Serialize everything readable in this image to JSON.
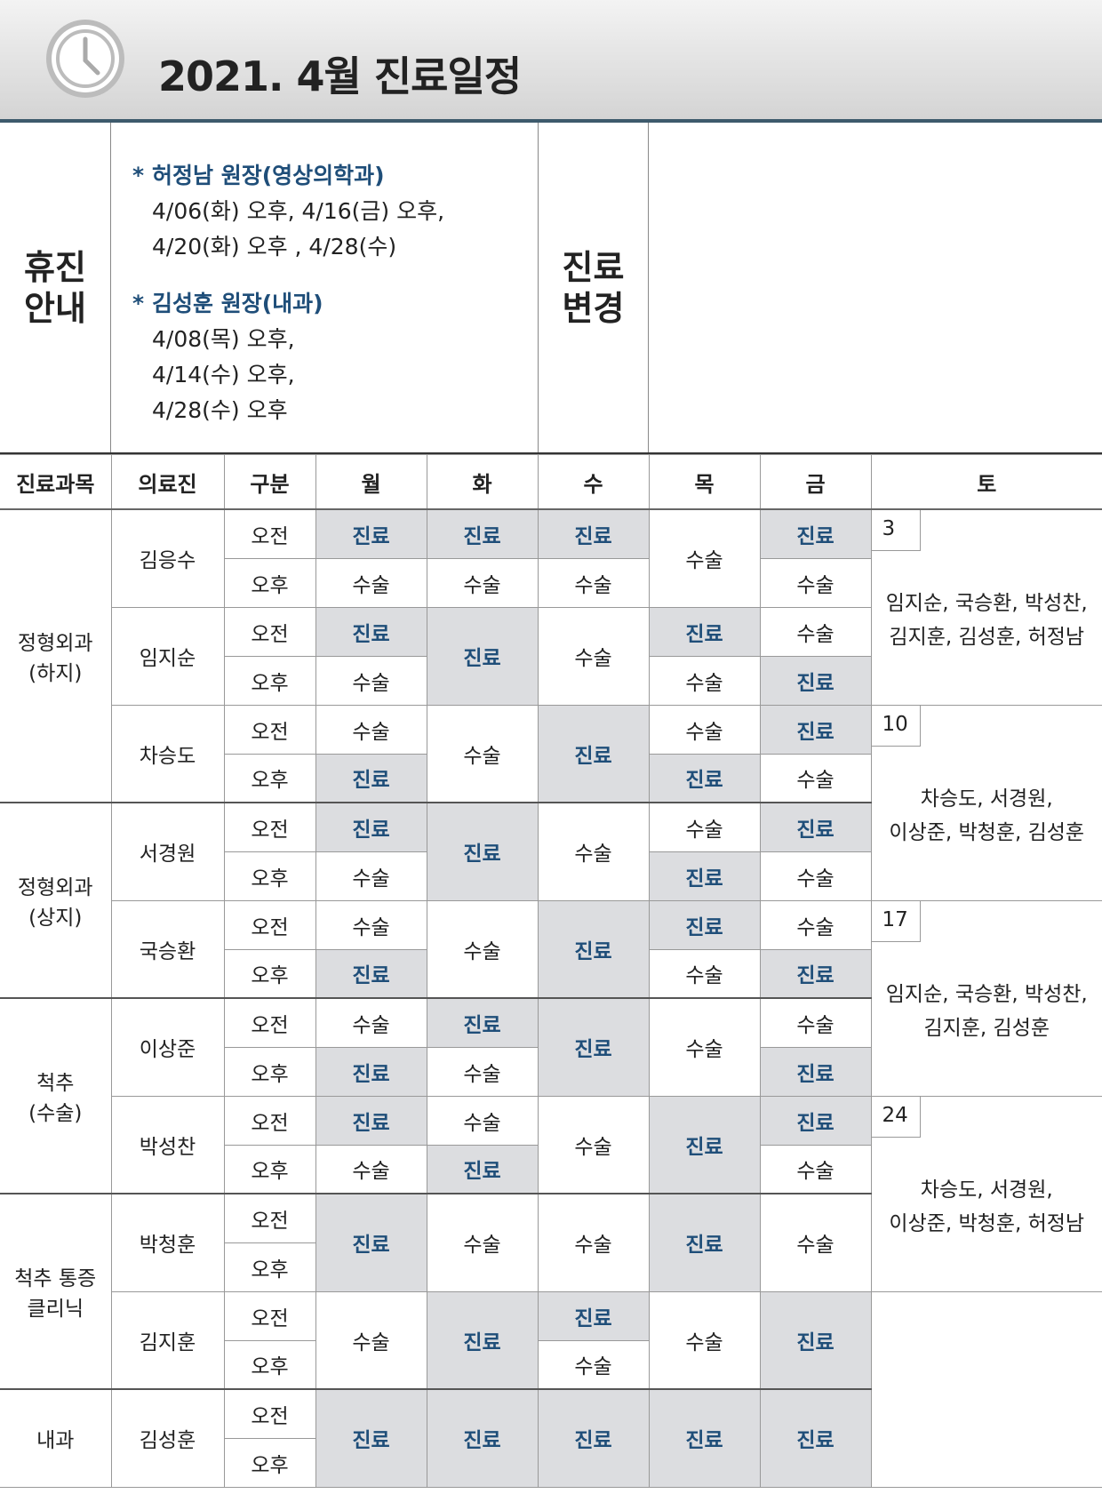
{
  "header": {
    "title": "2021. 4월 진료일정"
  },
  "notice": {
    "label": [
      "휴진",
      "안내"
    ],
    "items": [
      {
        "bullet": "*",
        "doctor": "허정남 원장(영상의학과)",
        "lines": [
          "4/06(화) 오후, 4/16(금) 오후,",
          "4/20(화) 오후 , 4/28(수)"
        ]
      },
      {
        "bullet": "*",
        "doctor": "김성훈 원장(내과)",
        "lines": [
          "4/08(목) 오후,",
          "4/14(수) 오후,",
          "4/28(수) 오후"
        ]
      }
    ],
    "change_label": [
      "진료",
      "변경"
    ]
  },
  "table": {
    "columns": [
      "진료과목",
      "의료진",
      "구분",
      "월",
      "화",
      "수",
      "목",
      "금",
      "토"
    ],
    "periods": [
      "오전",
      "오후"
    ],
    "highlight": {
      "value": "진료",
      "fill": "#dcdde0",
      "color": "#1f4e79"
    },
    "departments": [
      {
        "name": [
          "정형외과",
          "(하지)"
        ],
        "doctors": [
          {
            "name": "김응수",
            "schedule": [
              [
                "진료",
                "수술"
              ],
              [
                "진료",
                "수술"
              ],
              [
                "진료",
                "수술"
              ],
              "수술",
              [
                "진료",
                "수술"
              ]
            ]
          },
          {
            "name": "임지순",
            "schedule": [
              [
                "진료",
                "수술"
              ],
              "진료",
              "수술",
              [
                "진료",
                "수술"
              ],
              [
                "수술",
                "진료"
              ]
            ]
          },
          {
            "name": "차승도",
            "schedule": [
              [
                "수술",
                "진료"
              ],
              "수술",
              "진료",
              [
                "수술",
                "진료"
              ],
              [
                "진료",
                "수술"
              ]
            ]
          }
        ]
      },
      {
        "name": [
          "정형외과",
          "(상지)"
        ],
        "doctors": [
          {
            "name": "서경원",
            "schedule": [
              [
                "진료",
                "수술"
              ],
              "진료",
              "수술",
              [
                "수술",
                "진료"
              ],
              [
                "진료",
                "수술"
              ]
            ]
          },
          {
            "name": "국승환",
            "schedule": [
              [
                "수술",
                "진료"
              ],
              "수술",
              "진료",
              [
                "진료",
                "수술"
              ],
              [
                "수술",
                "진료"
              ]
            ]
          }
        ]
      },
      {
        "name": [
          "척추",
          "(수술)"
        ],
        "doctors": [
          {
            "name": "이상준",
            "schedule": [
              [
                "수술",
                "진료"
              ],
              [
                "진료",
                "수술"
              ],
              "진료",
              "수술",
              [
                "수술",
                "진료"
              ]
            ]
          },
          {
            "name": "박성찬",
            "schedule": [
              [
                "진료",
                "수술"
              ],
              [
                "수술",
                "진료"
              ],
              "수술",
              "진료",
              [
                "진료",
                "수술"
              ]
            ]
          }
        ]
      },
      {
        "name": [
          "척추 통증",
          "클리닉"
        ],
        "doctors": [
          {
            "name": "박청훈",
            "schedule": [
              "진료",
              "수술",
              "수술",
              "진료",
              "수술"
            ]
          },
          {
            "name": "김지훈",
            "schedule": [
              "수술",
              "진료",
              [
                "진료",
                "수술"
              ],
              "수술",
              "진료"
            ]
          }
        ]
      },
      {
        "name": [
          "내과"
        ],
        "doctors": [
          {
            "name": "김성훈",
            "schedule": [
              "진료",
              "진료",
              "진료",
              "진료",
              "진료"
            ]
          }
        ]
      }
    ],
    "saturday": [
      {
        "date": "3",
        "lines": [
          "임지순, 국승환, 박성찬,",
          "김지훈, 김성훈, 허정남"
        ]
      },
      {
        "date": "10",
        "lines": [
          "차승도, 서경원,",
          "이상준, 박청훈, 김성훈"
        ]
      },
      {
        "date": "17",
        "lines": [
          "임지순, 국승환, 박성찬,",
          "김지훈, 김성훈"
        ]
      },
      {
        "date": "24",
        "lines": [
          "차승도, 서경원,",
          "이상준, 박청훈, 허정남"
        ]
      }
    ]
  }
}
